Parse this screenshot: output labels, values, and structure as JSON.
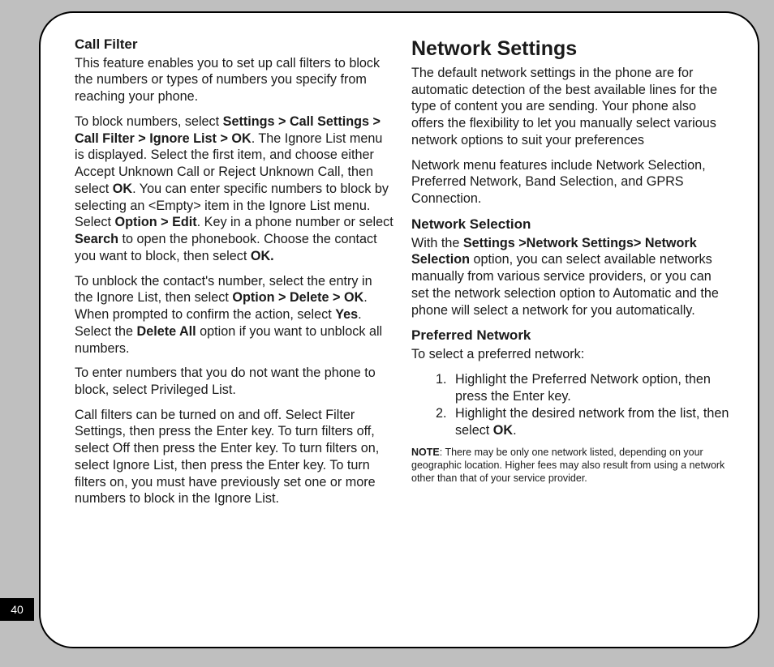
{
  "page_number": "40",
  "left": {
    "heading": "Call Filter",
    "p1": "This feature enables you to set up call filters to block the numbers or types of numbers you specify from reaching your phone.",
    "p2a": "To block numbers, select ",
    "p2b": "Settings > Call Settings > Call Filter > Ignore List > OK",
    "p2c": ". The Ignore List menu is displayed. Select the first item, and choose either Accept  Unknown Call or Reject Unknown Call, then select ",
    "p2d": "OK",
    "p2e": ".  You can enter specific numbers to block by selecting an <Empty> item in the Ignore List menu. Select ",
    "p2f": "Option > Edit",
    "p2g": ". Key in a phone number or select ",
    "p2h": "Search",
    "p2i": " to open the phonebook. Choose the contact you want to block, then select ",
    "p2j": "OK.",
    "p3a": "To unblock the contact's number, select the entry in the Ignore List, then select ",
    "p3b": "Option > Delete > OK",
    "p3c": ". When prompted to confirm the action, select ",
    "p3d": "Yes",
    "p3e": ". Select the ",
    "p3f": "Delete All",
    "p3g": " option if you want to unblock all numbers.",
    "p4": "To enter numbers that you do not want the phone to block, select Privileged List.",
    "p5": "Call filters can be turned on and off. Select Filter Settings, then press the Enter key. To turn filters off, select Off then press the Enter key. To turn filters on, select Ignore List, then press the Enter key. To turn filters on, you must have previously set one or more numbers to block in the Ignore List."
  },
  "right": {
    "heading": "Network Settings",
    "p1": "The default network settings in the phone are for automatic detection of the best available lines for the type of content you are sending. Your phone also offers the flexibility to let you manually select various network options to suit your preferences",
    "p2": "Network menu features include Network Selection, Preferred Network, Band Selection, and GPRS Connection.",
    "sec1_heading": "Network Selection",
    "sec1a": "With the ",
    "sec1b": "Settings >Network Settings> Network Selection",
    "sec1c": " option, you can select available networks manually from various service providers, or you can set the network selection option to Automatic and the phone will select a network for you automatically.",
    "sec2_heading": "Preferred Network",
    "sec2_intro": "To select a preferred network:",
    "sec2_li1": "Highlight the Preferred Network option, then press the Enter key.",
    "sec2_li2a": "Highlight the desired network from the list, then select ",
    "sec2_li2b": "OK",
    "sec2_li2c": ".",
    "note_label": "NOTE",
    "note_body": ": There may be only one network listed, depending on your geographic location. Higher fees may also result from using a network other than that of your service provider."
  }
}
